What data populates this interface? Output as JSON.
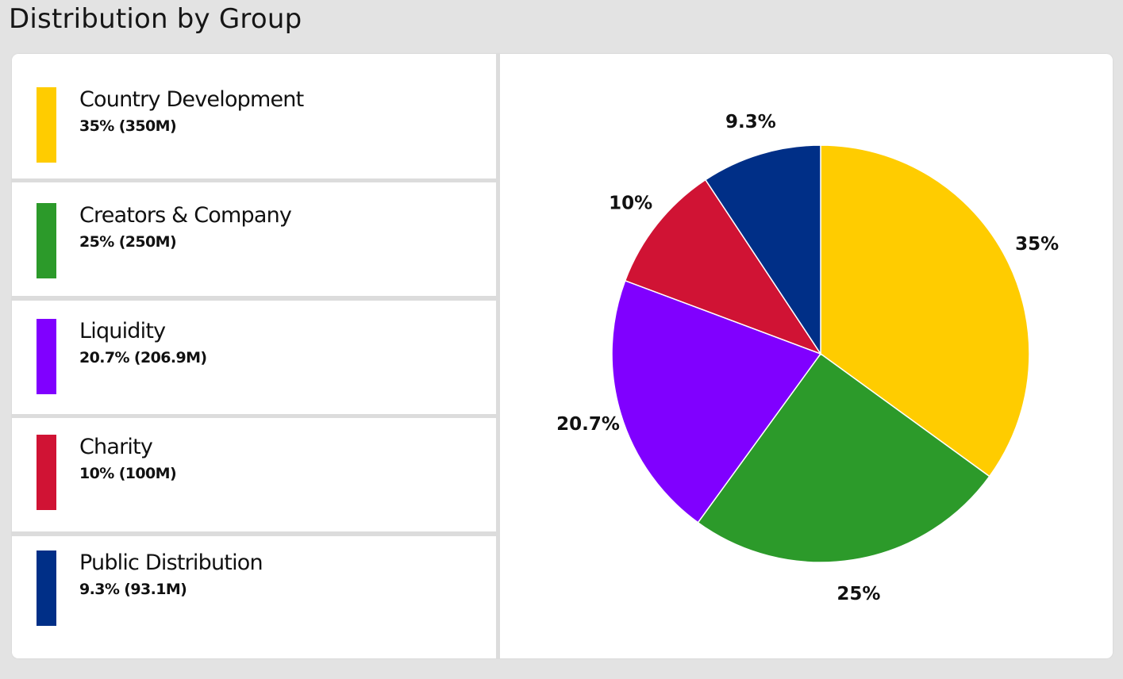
{
  "page": {
    "title": "Distribution by Group"
  },
  "legend": [
    {
      "name": "Country Development",
      "value_text": "35% (350M)",
      "color": "#ffcc00"
    },
    {
      "name": "Creators & Company",
      "value_text": "25% (250M)",
      "color": "#2c9a2a"
    },
    {
      "name": "Liquidity",
      "value_text": "20.7% (206.9M)",
      "color": "#8000ff"
    },
    {
      "name": "Charity",
      "value_text": "10% (100M)",
      "color": "#d01334"
    },
    {
      "name": "Public Distribution",
      "value_text": "9.3% (93.1M)",
      "color": "#002f87"
    }
  ],
  "chart_data": {
    "type": "pie",
    "title": "Distribution by Group",
    "categories": [
      "Country Development",
      "Creators & Company",
      "Liquidity",
      "Charity",
      "Public Distribution"
    ],
    "values": [
      35,
      25,
      20.7,
      10,
      9.3
    ],
    "amounts": [
      "350M",
      "250M",
      "206.9M",
      "100M",
      "93.1M"
    ],
    "labels": [
      "35%",
      "25%",
      "20.7%",
      "10%",
      "9.3%"
    ],
    "colors": [
      "#ffcc00",
      "#2c9a2a",
      "#8000ff",
      "#d01334",
      "#002f87"
    ],
    "start": "top",
    "direction": "clockwise",
    "legend_position": "left"
  }
}
